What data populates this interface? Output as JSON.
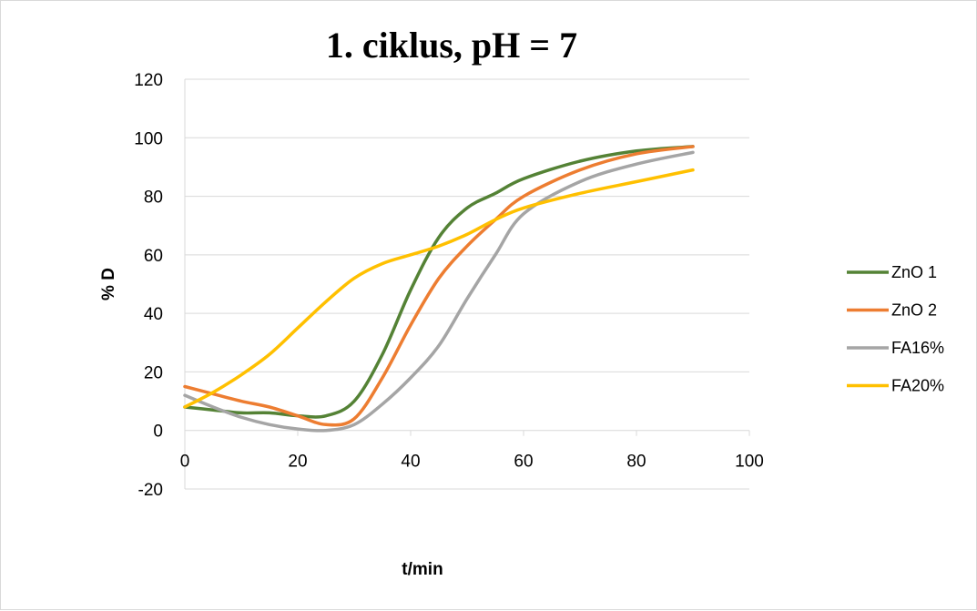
{
  "chart_data": {
    "type": "line",
    "title": "1. ciklus, pH = 7",
    "xlabel": "t/min",
    "ylabel": "% D",
    "xlim": [
      0,
      100
    ],
    "ylim": [
      -20,
      120
    ],
    "x_ticks": [
      0,
      20,
      40,
      60,
      80,
      100
    ],
    "y_ticks": [
      -20,
      0,
      20,
      40,
      60,
      80,
      100,
      120
    ],
    "grid": "horizontal",
    "legend_position": "right",
    "series": [
      {
        "name": "ZnO 1",
        "color": "#548235",
        "x": [
          0,
          5,
          10,
          15,
          20,
          25,
          30,
          35,
          40,
          45,
          50,
          55,
          60,
          70,
          80,
          90
        ],
        "y": [
          8,
          7,
          6,
          6,
          5,
          5,
          10,
          26,
          48,
          66,
          76,
          81,
          86,
          92,
          95.5,
          97
        ]
      },
      {
        "name": "ZnO 2",
        "color": "#ED7D31",
        "x": [
          0,
          5,
          10,
          15,
          20,
          25,
          30,
          35,
          40,
          45,
          50,
          55,
          60,
          70,
          80,
          90
        ],
        "y": [
          15,
          12.5,
          10,
          8,
          5,
          2,
          4,
          18,
          36,
          52,
          63,
          72,
          80,
          89,
          94.5,
          97
        ]
      },
      {
        "name": "FA16%",
        "color": "#A5A5A5",
        "x": [
          0,
          5,
          10,
          15,
          20,
          25,
          30,
          35,
          40,
          45,
          50,
          55,
          60,
          70,
          80,
          90
        ],
        "y": [
          12,
          8,
          4.5,
          2,
          0.5,
          0,
          2,
          9,
          18,
          29,
          45,
          60,
          74,
          85,
          91,
          95
        ]
      },
      {
        "name": "FA20%",
        "color": "#FFC000",
        "x": [
          0,
          5,
          10,
          15,
          20,
          25,
          30,
          35,
          40,
          45,
          50,
          55,
          60,
          70,
          80,
          90
        ],
        "y": [
          8,
          13,
          19,
          26,
          35,
          44,
          52,
          57,
          60,
          63,
          67,
          72,
          76,
          81,
          85,
          89
        ]
      }
    ]
  }
}
